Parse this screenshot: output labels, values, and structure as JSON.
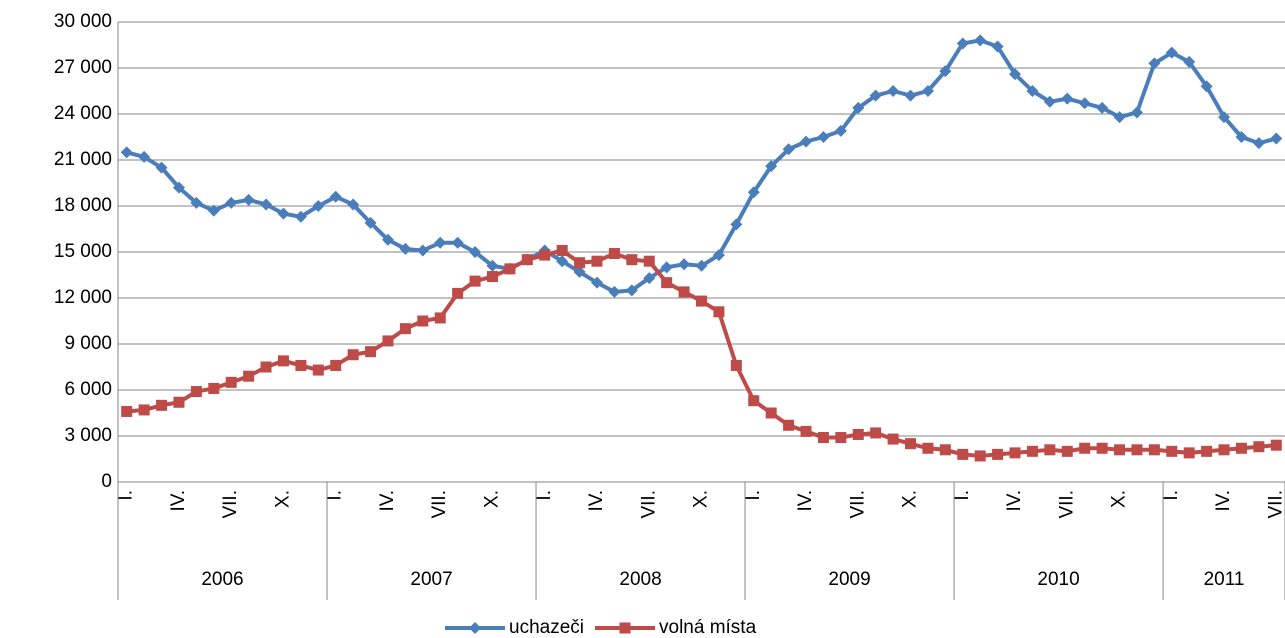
{
  "chart_data": {
    "type": "line",
    "categories": [
      "I.",
      null,
      null,
      "IV.",
      null,
      null,
      "VII.",
      null,
      null,
      "X.",
      null,
      null,
      "I.",
      null,
      null,
      "IV.",
      null,
      null,
      "VII.",
      null,
      null,
      "X.",
      null,
      null,
      "I.",
      null,
      null,
      "IV.",
      null,
      null,
      "VII.",
      null,
      null,
      "X.",
      null,
      null,
      "I.",
      null,
      null,
      "IV.",
      null,
      null,
      "VII.",
      null,
      null,
      "X.",
      null,
      null,
      "I.",
      null,
      null,
      "IV.",
      null,
      null,
      "VII.",
      null,
      null,
      "X.",
      null,
      null,
      "I.",
      null,
      null,
      "IV.",
      null,
      null,
      "VII."
    ],
    "years": [
      "2006",
      "2007",
      "2008",
      "2009",
      "2010",
      "2011"
    ],
    "series": [
      {
        "name": "uchazeči",
        "color": "#4a7ebb",
        "marker": "diamond",
        "values": [
          21500,
          21200,
          20500,
          19200,
          18200,
          17700,
          18200,
          18400,
          18100,
          17500,
          17300,
          18000,
          18600,
          18100,
          16900,
          15800,
          15200,
          15100,
          15600,
          15600,
          15000,
          14100,
          13900,
          14500,
          15100,
          14400,
          13700,
          13000,
          12400,
          12500,
          13300,
          14000,
          14200,
          14100,
          14800,
          16800,
          18900,
          20600,
          21700,
          22200,
          22500,
          22900,
          24400,
          25200,
          25500,
          25200,
          25500,
          26800,
          28600,
          28800,
          28400,
          26600,
          25500,
          24800,
          25000,
          24700,
          24400,
          23800,
          24100,
          27300,
          28000,
          27400,
          25800,
          23800,
          22500,
          22100,
          22400
        ]
      },
      {
        "name": "volná místa",
        "color": "#be4b48",
        "marker": "square",
        "values": [
          4600,
          4700,
          5000,
          5200,
          5900,
          6100,
          6500,
          6900,
          7500,
          7900,
          7600,
          7300,
          7600,
          8300,
          8500,
          9200,
          10000,
          10500,
          10700,
          12300,
          13100,
          13400,
          13900,
          14500,
          14800,
          15100,
          14300,
          14400,
          14900,
          14500,
          14400,
          13000,
          12400,
          11800,
          11100,
          7600,
          5300,
          4500,
          3700,
          3300,
          2900,
          2900,
          3100,
          3200,
          2800,
          2500,
          2200,
          2100,
          1800,
          1700,
          1800,
          1900,
          2000,
          2100,
          2000,
          2200,
          2200,
          2100,
          2100,
          2100,
          2000,
          1900,
          2000,
          2100,
          2200,
          2300,
          2400
        ]
      }
    ],
    "ylim": [
      0,
      30000
    ],
    "yticks": [
      0,
      {
        "value": 3000,
        "label": "3 000"
      },
      {
        "value": 6000,
        "label": "6 000"
      },
      {
        "value": 9000,
        "label": "9 000"
      },
      {
        "value": 12000,
        "label": "12 000"
      },
      {
        "value": 15000,
        "label": "15 000"
      },
      {
        "value": 18000,
        "label": "18 000"
      },
      {
        "value": 21000,
        "label": "21 000"
      },
      {
        "value": 24000,
        "label": "24 000"
      },
      {
        "value": 27000,
        "label": "27 000"
      },
      {
        "value": 30000,
        "label": "30 000"
      }
    ],
    "grid": true,
    "legend": "bottom"
  }
}
